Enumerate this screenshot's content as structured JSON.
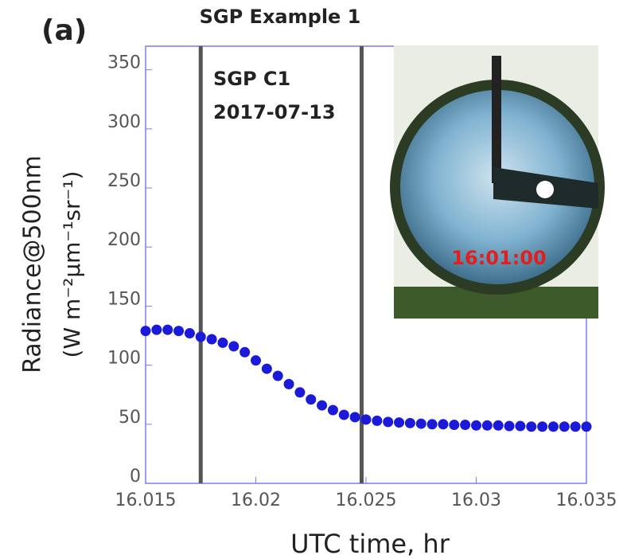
{
  "chart_data": {
    "type": "scatter",
    "panel_label": "(a)",
    "title": "SGP Example 1",
    "annotations": [
      "SGP C1",
      "2017-07-13"
    ],
    "inset_timestamp": "16:01:00",
    "x_label": "UTC time, hr",
    "y_label": [
      "Radiance@500nm",
      "(W m⁻²µm⁻¹sr⁻¹)"
    ],
    "xlim": [
      16.015,
      16.035
    ],
    "xticks": [
      16.015,
      16.02,
      16.025,
      16.03,
      16.035
    ],
    "ylim": [
      0,
      370
    ],
    "yticks": [
      0,
      50,
      100,
      150,
      200,
      250,
      300,
      350
    ],
    "vlines": [
      16.0175,
      16.0248
    ],
    "vline_color": "#555555",
    "axis_color": "#7a7aff",
    "series": [
      {
        "color": "#1a1ad8",
        "x": [
          16.015,
          16.0155,
          16.016,
          16.0165,
          16.017,
          16.0175,
          16.018,
          16.0185,
          16.019,
          16.0195,
          16.02,
          16.0205,
          16.021,
          16.0215,
          16.022,
          16.0225,
          16.023,
          16.0235,
          16.024,
          16.0245,
          16.025,
          16.0255,
          16.026,
          16.0265,
          16.027,
          16.0275,
          16.028,
          16.0285,
          16.029,
          16.0295,
          16.03,
          16.0305,
          16.031,
          16.0315,
          16.032,
          16.0325,
          16.033,
          16.0335,
          16.034,
          16.0345,
          16.035
        ],
        "values": [
          129,
          130,
          130,
          129,
          127,
          124,
          122,
          119,
          116,
          111,
          104,
          97,
          91,
          84,
          77,
          71,
          66,
          62,
          58,
          56,
          54,
          53,
          52,
          51.5,
          51,
          50.5,
          50,
          50,
          49.5,
          49.5,
          49,
          49,
          49,
          48.5,
          48.5,
          48,
          48,
          48,
          48,
          48,
          48
        ]
      }
    ]
  }
}
